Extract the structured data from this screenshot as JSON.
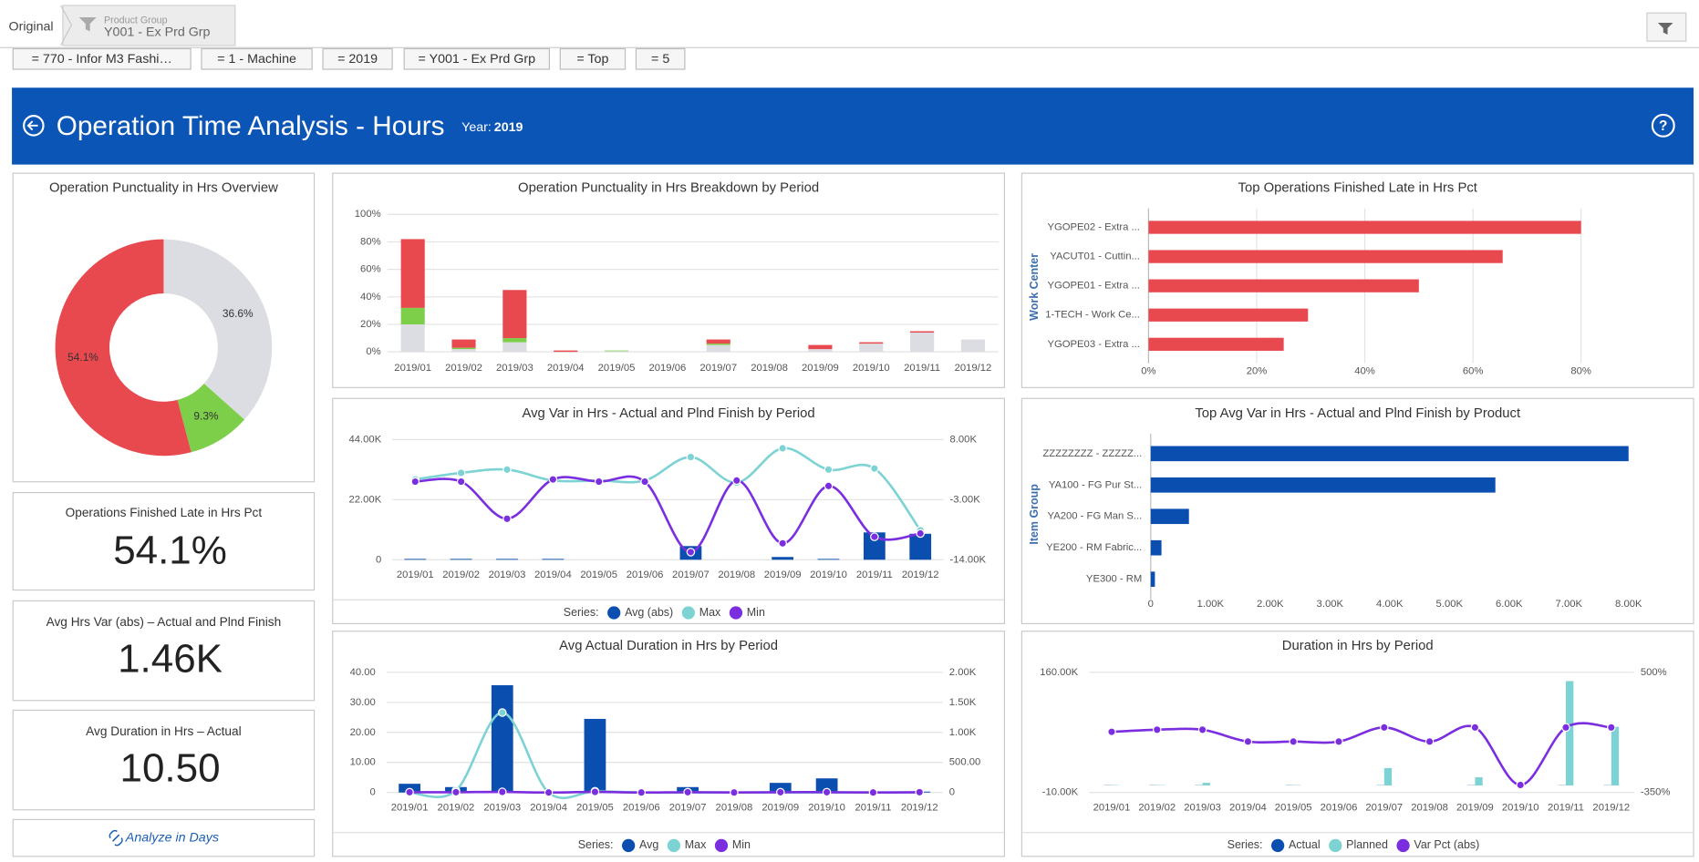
{
  "breadcrumb": {
    "root": "Original",
    "label": "Product Group",
    "value": "Y001 - Ex Prd Grp"
  },
  "filters": [
    "= 770 - Infor M3 Fashi…",
    "= 1 - Machine",
    "= 2019",
    "= Y001 - Ex Prd Grp",
    "= Top",
    "= 5"
  ],
  "header": {
    "title": "Operation Time Analysis - Hours",
    "year_label": "Year:",
    "year": "2019"
  },
  "kpis": [
    {
      "title": "Operations Finished Late in Hrs Pct",
      "value": "54.1%"
    },
    {
      "title": "Avg Hrs Var (abs) – Actual and Plnd Finish",
      "value": "1.46K"
    },
    {
      "title": "Avg Duration in Hrs – Actual",
      "value": "10.50"
    }
  ],
  "link": "Analyze in Days",
  "chart_data": [
    {
      "type": "pie",
      "donut": true,
      "title": "Operation Punctuality in Hrs Overview",
      "values": [
        36.6,
        9.3,
        54.1
      ],
      "value_labels": [
        "36.6%",
        "9.3%",
        "54.1%"
      ],
      "colors": [
        "#dcdde3",
        "#7dcf4a",
        "#e8494f"
      ]
    },
    {
      "type": "stacked_bar",
      "title": "Operation Punctuality in Hrs Breakdown by Period",
      "categories": [
        "2019/01",
        "2019/02",
        "2019/03",
        "2019/04",
        "2019/05",
        "2019/06",
        "2019/07",
        "2019/08",
        "2019/09",
        "2019/10",
        "2019/11",
        "2019/12"
      ],
      "series": [
        {
          "color": "#dcdde3",
          "values": [
            20,
            2,
            7,
            0,
            0.5,
            0,
            5,
            0,
            2,
            6,
            14,
            9
          ]
        },
        {
          "color": "#7dcf4a",
          "values": [
            12,
            1,
            3,
            0,
            0.5,
            0,
            1,
            0,
            0,
            0,
            0,
            0
          ]
        },
        {
          "color": "#e8494f",
          "values": [
            50,
            6,
            35,
            1,
            0,
            0,
            3,
            0,
            3,
            1,
            1,
            0
          ]
        }
      ],
      "ylim": [
        0,
        100
      ],
      "yticks": [
        {
          "value": 0,
          "label": "0%"
        },
        {
          "value": 20,
          "label": "20%"
        },
        {
          "value": 40,
          "label": "40%"
        },
        {
          "value": 60,
          "label": "60%"
        },
        {
          "value": 80,
          "label": "80%"
        },
        {
          "value": 100,
          "label": "100%"
        }
      ],
      "grid": true
    },
    {
      "type": "hbar",
      "title": "Top Operations Finished Late in Hrs Pct",
      "y_label": "Work Center",
      "categories": [
        "YGOPE02 - Extra ...",
        "YACUT01 - Cuttin...",
        "YGOPE01 - Extra ...",
        "1-TECH - Work Ce...",
        "YGOPE03 - Extra ..."
      ],
      "values": [
        80,
        65.5,
        50,
        29.5,
        25
      ],
      "color": "#e8494f",
      "xlim": [
        0,
        95
      ],
      "xticks": [
        {
          "value": 0,
          "label": "0%"
        },
        {
          "value": 20,
          "label": "20%"
        },
        {
          "value": 40,
          "label": "40%"
        },
        {
          "value": 60,
          "label": "60%"
        },
        {
          "value": 80,
          "label": "80%"
        }
      ],
      "grid": true
    },
    {
      "type": "combo",
      "title": "Avg Var in Hrs - Actual and Plnd Finish by Period",
      "categories": [
        "2019/01",
        "2019/02",
        "2019/03",
        "2019/04",
        "2019/05",
        "2019/06",
        "2019/07",
        "2019/08",
        "2019/09",
        "2019/10",
        "2019/11",
        "2019/12"
      ],
      "series": [
        {
          "name": "Avg (abs)",
          "color": "#0a4fb0",
          "kind": "bar",
          "values": [
            300,
            300,
            300,
            300,
            0,
            0,
            5000,
            0,
            1000,
            300,
            10000,
            9500
          ]
        },
        {
          "name": "Max",
          "color": "#7dd3d3",
          "kind": "line",
          "axis": "y2",
          "values": [
            700,
            1900,
            2500,
            500,
            500,
            500,
            4800,
            100,
            6400,
            2500,
            2700,
            -8600
          ]
        },
        {
          "name": "Min",
          "color": "#7b2ee0",
          "kind": "line",
          "axis": "y2",
          "values": [
            300,
            300,
            -6500,
            700,
            300,
            300,
            -12600,
            500,
            -11000,
            -500,
            -9800,
            -9200
          ]
        }
      ],
      "ylim": [
        0,
        44000
      ],
      "yticks": [
        0,
        {
          "value": 22000,
          "label": "22.00K"
        },
        {
          "value": 44000,
          "label": "44.00K"
        }
      ],
      "y2lim": [
        -14000,
        8000
      ],
      "y2ticks": [
        {
          "value": -14000,
          "label": "-14.00K"
        },
        {
          "value": -3000,
          "label": "-3.00K"
        },
        {
          "value": 8000,
          "label": "8.00K"
        }
      ],
      "grid": true,
      "legend": "bottom",
      "legend_title": "Series:"
    },
    {
      "type": "hbar",
      "title": "Top Avg Var in Hrs - Actual and Plnd Finish by Product",
      "y_label": "Item Group",
      "categories": [
        "ZZZZZZZZ - ZZZZZ...",
        "YA100 - FG Pur St...",
        "YA200 - FG Man S...",
        "YE200 - RM Fabric...",
        "YE300 - RM"
      ],
      "values": [
        8000,
        5770,
        640,
        180,
        70
      ],
      "color": "#0a4fb0",
      "xlim": [
        0,
        8000
      ],
      "xticks": [
        0,
        {
          "value": 1000,
          "label": "1.00K"
        },
        {
          "value": 2000,
          "label": "2.00K"
        },
        {
          "value": 3000,
          "label": "3.00K"
        },
        {
          "value": 4000,
          "label": "4.00K"
        },
        {
          "value": 5000,
          "label": "5.00K"
        },
        {
          "value": 6000,
          "label": "6.00K"
        },
        {
          "value": 7000,
          "label": "7.00K"
        },
        {
          "value": 8000,
          "label": "8.00K"
        }
      ],
      "grid": false
    },
    {
      "type": "combo",
      "title": "Avg Actual Duration in Hrs by Period",
      "categories": [
        "2019/01",
        "2019/02",
        "2019/03",
        "2019/04",
        "2019/05",
        "2019/06",
        "2019/07",
        "2019/08",
        "2019/09",
        "2019/10",
        "2019/11",
        "2019/12"
      ],
      "series": [
        {
          "name": "Avg",
          "color": "#0a4fb0",
          "kind": "bar",
          "values": [
            2.9,
            1.8,
            35.7,
            0,
            24.5,
            0.3,
            1.8,
            0.3,
            3.2,
            4.7,
            0.3,
            0.3
          ]
        },
        {
          "name": "Max",
          "color": "#7dd3d3",
          "kind": "line",
          "axis": "y2",
          "values": [
            0,
            30,
            1330,
            0,
            20,
            0,
            0,
            0,
            0,
            0,
            0,
            0
          ]
        },
        {
          "name": "Min",
          "color": "#7b2ee0",
          "kind": "line",
          "axis": "y2",
          "values": [
            5,
            5,
            10,
            0,
            10,
            0,
            5,
            0,
            5,
            5,
            0,
            5
          ]
        }
      ],
      "ylim": [
        0,
        40
      ],
      "yticks": [
        0,
        {
          "value": 10,
          "label": "10.00"
        },
        {
          "value": 20,
          "label": "20.00"
        },
        {
          "value": 30,
          "label": "30.00"
        },
        {
          "value": 40,
          "label": "40.00"
        }
      ],
      "y2lim": [
        0,
        2000
      ],
      "y2ticks": [
        0,
        {
          "value": 500,
          "label": "500.00"
        },
        {
          "value": 1000,
          "label": "1.00K"
        },
        {
          "value": 1500,
          "label": "1.50K"
        },
        {
          "value": 2000,
          "label": "2.00K"
        }
      ],
      "grid": true,
      "legend": "bottom",
      "legend_title": "Series:"
    },
    {
      "type": "combo",
      "title": "Duration in Hrs by Period",
      "categories": [
        "2019/01",
        "2019/02",
        "2019/03",
        "2019/04",
        "2019/05",
        "2019/06",
        "2019/07",
        "2019/08",
        "2019/09",
        "2019/10",
        "2019/11",
        "2019/12"
      ],
      "series": [
        {
          "name": "Actual",
          "color": "#0a4fb0",
          "kind": "bar",
          "values": [
            300,
            300,
            300,
            0,
            300,
            0,
            300,
            0,
            300,
            0,
            300,
            300
          ]
        },
        {
          "name": "Planned",
          "color": "#7dd3d3",
          "kind": "bar",
          "values": [
            500,
            500,
            3700,
            0,
            500,
            0,
            24500,
            0,
            11500,
            0,
            147600,
            83000
          ]
        },
        {
          "name": "Var Pct (abs)",
          "color": "#7b2ee0",
          "kind": "line",
          "axis": "y2",
          "values": [
            79,
            94,
            94,
            10,
            10,
            10,
            110,
            10,
            110,
            -297,
            110,
            110
          ]
        }
      ],
      "ylim": [
        -10000,
        160000
      ],
      "yticks": [
        {
          "value": -10000,
          "label": "-10.00K"
        },
        {
          "value": 160000,
          "label": "160.00K"
        }
      ],
      "y2lim": [
        -350,
        500
      ],
      "y2ticks": [
        {
          "value": -350,
          "label": "-350%"
        },
        {
          "value": 500,
          "label": "500%"
        }
      ],
      "grid": true,
      "legend": "bottom",
      "legend_title": "Series:"
    }
  ]
}
